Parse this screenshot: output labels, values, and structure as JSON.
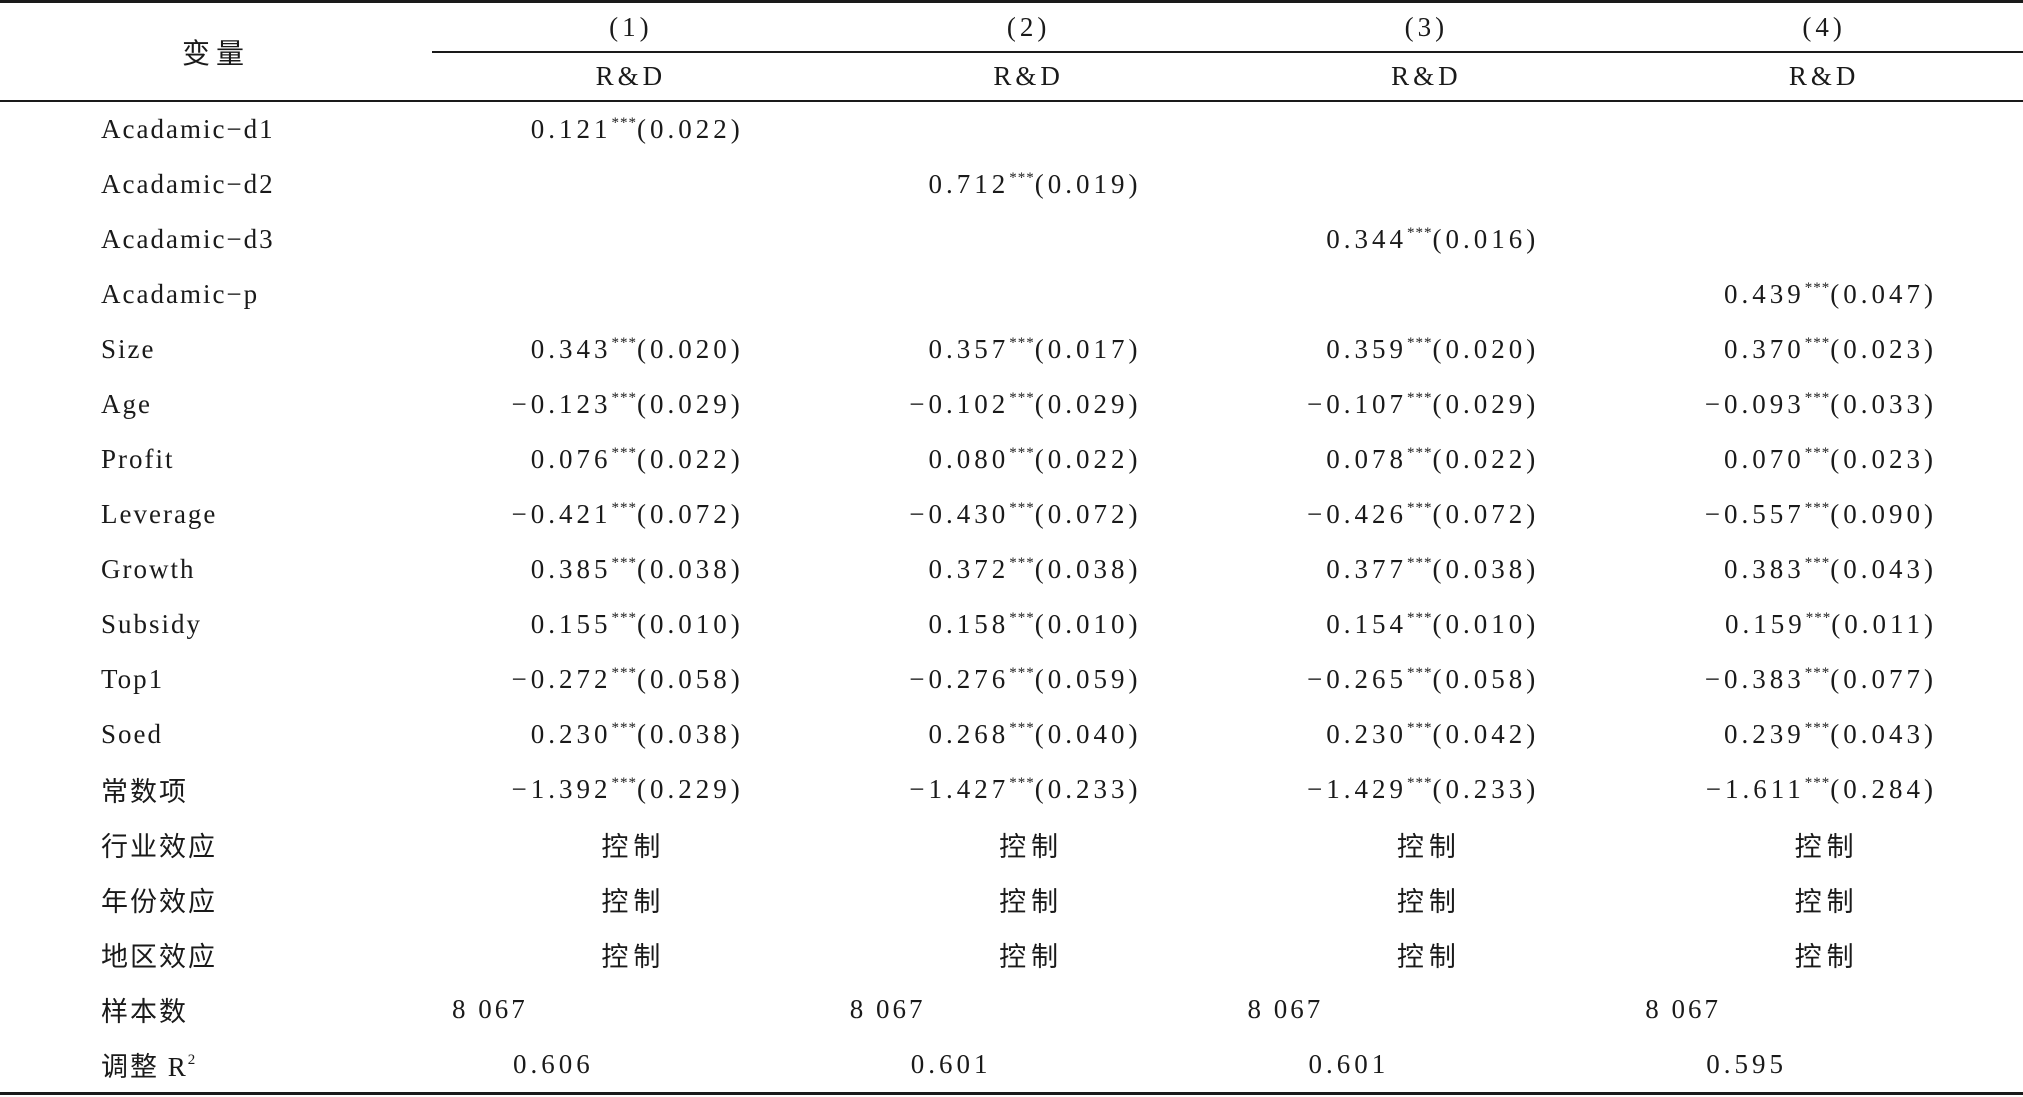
{
  "header": {
    "variable_label": "变量",
    "columns": [
      {
        "number": "(1)",
        "dep_var": "R&D"
      },
      {
        "number": "(2)",
        "dep_var": "R&D"
      },
      {
        "number": "(3)",
        "dep_var": "R&D"
      },
      {
        "number": "(4)",
        "dep_var": "R&D"
      }
    ]
  },
  "rows": [
    {
      "label": "Acadamic−d1",
      "cells": [
        {
          "coef": "0.121",
          "stars": "***",
          "se": "(0.022)"
        },
        null,
        null,
        null
      ]
    },
    {
      "label": "Acadamic−d2",
      "cells": [
        null,
        {
          "coef": "0.712",
          "stars": "***",
          "se": "(0.019)"
        },
        null,
        null
      ]
    },
    {
      "label": "Acadamic−d3",
      "cells": [
        null,
        null,
        {
          "coef": "0.344",
          "stars": "***",
          "se": "(0.016)"
        },
        null
      ]
    },
    {
      "label": "Acadamic−p",
      "cells": [
        null,
        null,
        null,
        {
          "coef": "0.439",
          "stars": "***",
          "se": "(0.047)"
        }
      ]
    },
    {
      "label": "Size",
      "cells": [
        {
          "coef": "0.343",
          "stars": "***",
          "se": "(0.020)"
        },
        {
          "coef": "0.357",
          "stars": "***",
          "se": "(0.017)"
        },
        {
          "coef": "0.359",
          "stars": "***",
          "se": "(0.020)"
        },
        {
          "coef": "0.370",
          "stars": "***",
          "se": "(0.023)"
        }
      ]
    },
    {
      "label": "Age",
      "cells": [
        {
          "coef": "−0.123",
          "stars": "***",
          "se": "(0.029)"
        },
        {
          "coef": "−0.102",
          "stars": "***",
          "se": "(0.029)"
        },
        {
          "coef": "−0.107",
          "stars": "***",
          "se": "(0.029)"
        },
        {
          "coef": "−0.093",
          "stars": "***",
          "se": "(0.033)"
        }
      ]
    },
    {
      "label": "Profit",
      "cells": [
        {
          "coef": "0.076",
          "stars": "***",
          "se": "(0.022)"
        },
        {
          "coef": "0.080",
          "stars": "***",
          "se": "(0.022)"
        },
        {
          "coef": "0.078",
          "stars": "***",
          "se": "(0.022)"
        },
        {
          "coef": "0.070",
          "stars": "***",
          "se": "(0.023)"
        }
      ]
    },
    {
      "label": "Leverage",
      "cells": [
        {
          "coef": "−0.421",
          "stars": "***",
          "se": "(0.072)"
        },
        {
          "coef": "−0.430",
          "stars": "***",
          "se": "(0.072)"
        },
        {
          "coef": "−0.426",
          "stars": "***",
          "se": "(0.072)"
        },
        {
          "coef": "−0.557",
          "stars": "***",
          "se": "(0.090)"
        }
      ]
    },
    {
      "label": "Growth",
      "cells": [
        {
          "coef": "0.385",
          "stars": "***",
          "se": "(0.038)"
        },
        {
          "coef": "0.372",
          "stars": "***",
          "se": "(0.038)"
        },
        {
          "coef": "0.377",
          "stars": "***",
          "se": "(0.038)"
        },
        {
          "coef": "0.383",
          "stars": "***",
          "se": "(0.043)"
        }
      ]
    },
    {
      "label": "Subsidy",
      "cells": [
        {
          "coef": "0.155",
          "stars": "***",
          "se": "(0.010)"
        },
        {
          "coef": "0.158",
          "stars": "***",
          "se": "(0.010)"
        },
        {
          "coef": "0.154",
          "stars": "***",
          "se": "(0.010)"
        },
        {
          "coef": "0.159",
          "stars": "***",
          "se": "(0.011)"
        }
      ]
    },
    {
      "label": "Top1",
      "cells": [
        {
          "coef": "−0.272",
          "stars": "***",
          "se": "(0.058)"
        },
        {
          "coef": "−0.276",
          "stars": "***",
          "se": "(0.059)"
        },
        {
          "coef": "−0.265",
          "stars": "***",
          "se": "(0.058)"
        },
        {
          "coef": "−0.383",
          "stars": "***",
          "se": "(0.077)"
        }
      ]
    },
    {
      "label": "Soed",
      "cells": [
        {
          "coef": "0.230",
          "stars": "***",
          "se": "(0.038)"
        },
        {
          "coef": "0.268",
          "stars": "***",
          "se": "(0.040)"
        },
        {
          "coef": "0.230",
          "stars": "***",
          "se": "(0.042)"
        },
        {
          "coef": "0.239",
          "stars": "***",
          "se": "(0.043)"
        }
      ]
    },
    {
      "label": "常数项",
      "cells": [
        {
          "coef": "−1.392",
          "stars": "***",
          "se": "(0.229)"
        },
        {
          "coef": "−1.427",
          "stars": "***",
          "se": "(0.233)"
        },
        {
          "coef": "−1.429",
          "stars": "***",
          "se": "(0.233)"
        },
        {
          "coef": "−1.611",
          "stars": "***",
          "se": "(0.284)"
        }
      ]
    }
  ],
  "controls": [
    {
      "label": "行业效应",
      "cells": [
        "控制",
        "控制",
        "控制",
        "控制"
      ]
    },
    {
      "label": "年份效应",
      "cells": [
        "控制",
        "控制",
        "控制",
        "控制"
      ]
    },
    {
      "label": "地区效应",
      "cells": [
        "控制",
        "控制",
        "控制",
        "控制"
      ]
    }
  ],
  "sample_size": {
    "label": "样本数",
    "cells": [
      "8 067",
      "8 067",
      "8 067",
      "8 067"
    ]
  },
  "adj_r2": {
    "label": "调整 R",
    "label_sup": "2",
    "cells": [
      "0.606",
      "0.601",
      "0.601",
      "0.595"
    ]
  }
}
